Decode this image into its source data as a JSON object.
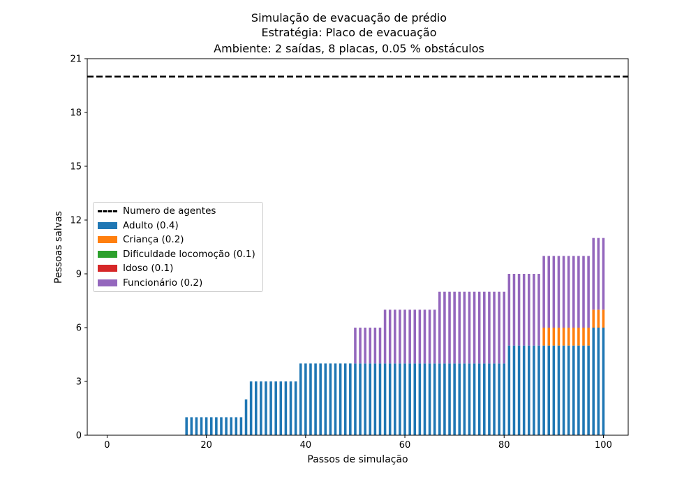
{
  "chart_data": {
    "type": "bar",
    "stacked": true,
    "title_lines": [
      "Simulação de evacuação de prédio",
      "Estratégia: Placo de evacuação",
      "Ambiente: 2 saídas, 8 placas, 0.05 % obstáculos"
    ],
    "xlabel": "Passos de simulação",
    "ylabel": "Pessoas salvas",
    "xlim": [
      -4,
      105
    ],
    "ylim": [
      0,
      21
    ],
    "xticks": [
      "0",
      "20",
      "40",
      "60",
      "80",
      "100"
    ],
    "yticks": [
      "0",
      "3",
      "6",
      "9",
      "12",
      "15",
      "18",
      "21"
    ],
    "reference_line": {
      "name": "Numero de agentes",
      "value": 20,
      "style": "dashed",
      "color": "#000000"
    },
    "legend_position": "center-left",
    "grid": false,
    "series": [
      {
        "name": "Adulto (0.4)",
        "color": "#1f77b4",
        "steps": [
          [
            16,
            1
          ],
          [
            28,
            2
          ],
          [
            29,
            3
          ],
          [
            39,
            4
          ],
          [
            81,
            5
          ],
          [
            98,
            6
          ]
        ]
      },
      {
        "name": "Criança (0.2)",
        "color": "#ff7f0e",
        "steps": [
          [
            88,
            1
          ]
        ]
      },
      {
        "name": "Dificuldade locomoção (0.1)",
        "color": "#2ca02c",
        "steps": []
      },
      {
        "name": "Idoso (0.1)",
        "color": "#d62728",
        "steps": []
      },
      {
        "name": "Funcionário (0.2)",
        "color": "#9467bd",
        "steps": [
          [
            50,
            2
          ],
          [
            56,
            3
          ],
          [
            67,
            4
          ],
          [
            81,
            4
          ],
          [
            88,
            4
          ]
        ]
      }
    ],
    "x_range": [
      0,
      100
    ],
    "step_note_omitted": true
  }
}
